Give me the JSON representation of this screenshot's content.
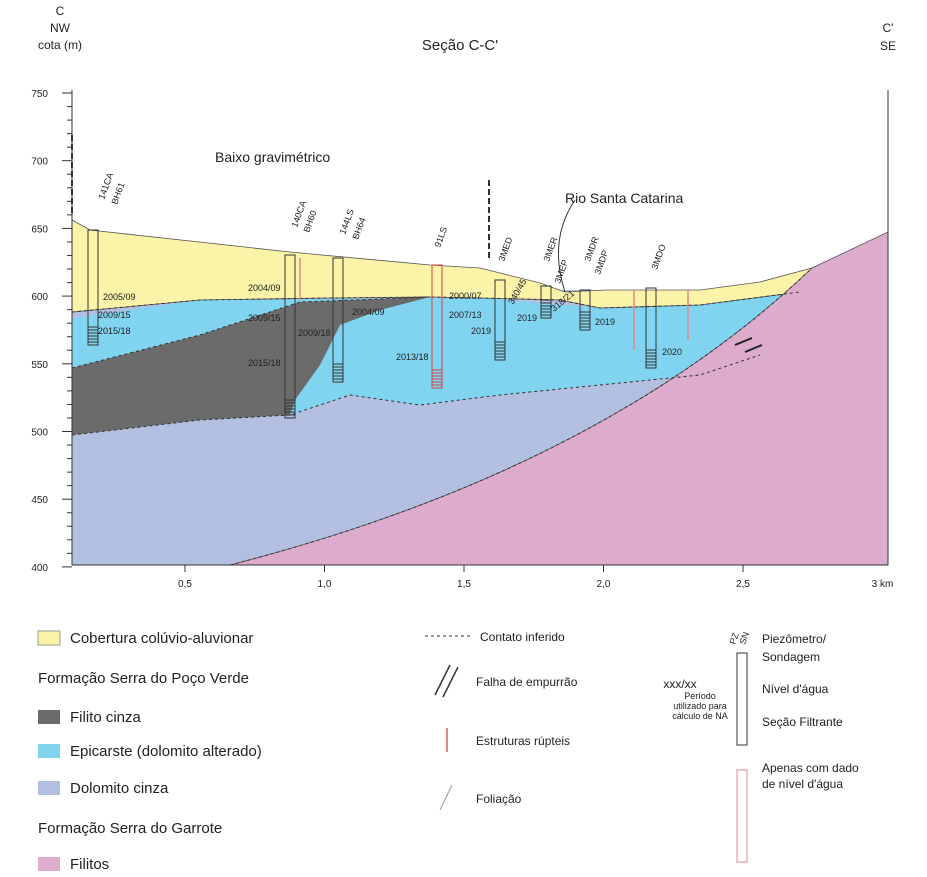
{
  "header": {
    "left_letter": "C",
    "left_dir": "NW",
    "y_label": "cota (m)",
    "section_title": "Seção C-C'",
    "right_letter": "C'",
    "right_dir": "SE"
  },
  "axis": {
    "y_ticks": [
      "750",
      "700",
      "650",
      "600",
      "550",
      "500",
      "450",
      "400"
    ],
    "x_ticks": [
      "0,5",
      "1,0",
      "1,5",
      "2,0",
      "2,5",
      "3 km"
    ]
  },
  "annotations": {
    "low": "Baixo gravimétrico",
    "river": "Rio Santa Catarina"
  },
  "wells": [
    "141CA",
    "BH61",
    "140CA",
    "BH60",
    "144LS",
    "BH64",
    "91LS",
    "3MED",
    "3MER",
    "3MEP",
    "3MDR",
    "3MDP",
    "3MDO"
  ],
  "dates": [
    "2005/09",
    "2009/15",
    "2015/18",
    "2004/09",
    "2009/15",
    "2015/18",
    "2009/18",
    "2004/09",
    "2000/07",
    "2007/13",
    "2013/18",
    "2019",
    "340/45",
    "2019",
    "318/21",
    "2019",
    "2020"
  ],
  "legend": {
    "units": [
      "Cobertura colúvio-aluvionar",
      "Formação Serra do Poço Verde",
      "Filito cinza",
      "Epicarste (dolomito alterado)",
      "Dolomito cinza",
      "Formação Serra do Garrote",
      "Filitos"
    ],
    "symbols": [
      "Contato inferido",
      "Falha de empurrão",
      "Estruturas rúpteis",
      "Foliação"
    ],
    "well_key": {
      "pz": "PZ",
      "sn": "SN",
      "title": "Piezômetro/",
      "title2": "Sondagem",
      "code": "xxx/xx",
      "period": "Período",
      "period2": "utilizado para",
      "period3": "cálculo de NA",
      "water": "Nível d'água",
      "filter": "Seção Filtrante",
      "only": "Apenas com dado",
      "only2": "de nível d'água"
    }
  }
}
